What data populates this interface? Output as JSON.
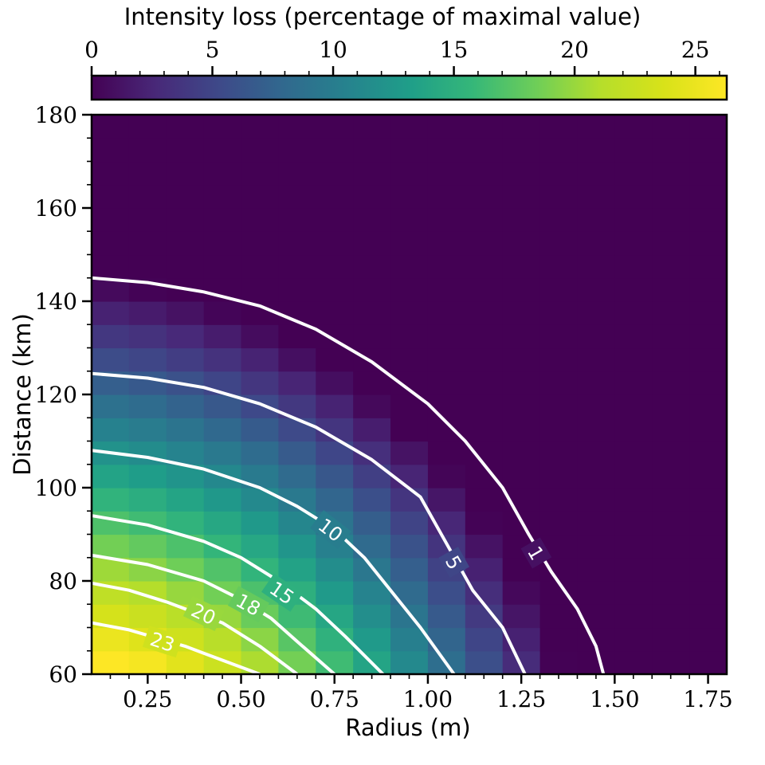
{
  "chart_data": {
    "type": "heatmap",
    "title": "",
    "xlabel": "Radius (m)",
    "ylabel": "Distance (km)",
    "colorbar_label": "Intensity loss (percentage of maximal value)",
    "xlim": [
      0.1,
      1.8
    ],
    "ylim": [
      60,
      180
    ],
    "colorbar_range": [
      0,
      26.3
    ],
    "x_ticks": [
      0.25,
      0.5,
      0.75,
      1.0,
      1.25,
      1.5,
      1.75
    ],
    "x_tick_labels": [
      "0.25",
      "0.50",
      "0.75",
      "1.00",
      "1.25",
      "1.50",
      "1.75"
    ],
    "y_ticks": [
      60,
      80,
      100,
      120,
      140,
      160,
      180
    ],
    "y_tick_labels": [
      "60",
      "80",
      "100",
      "120",
      "140",
      "160",
      "180"
    ],
    "colorbar_ticks": [
      0,
      5,
      10,
      15,
      20,
      25
    ],
    "colorbar_tick_labels": [
      "0",
      "5",
      "10",
      "15",
      "20",
      "25"
    ],
    "colormap": "viridis",
    "grid": false,
    "legend": "none",
    "model": {
      "description": "intensity loss grid sampled every 0.1 m radius and 5 km distance",
      "r_step": 0.1,
      "d_step": 5
    },
    "contours": [
      {
        "level": 1,
        "label": "1",
        "points": [
          [
            0.1,
            145
          ],
          [
            0.25,
            144
          ],
          [
            0.4,
            142
          ],
          [
            0.55,
            139
          ],
          [
            0.7,
            134
          ],
          [
            0.85,
            127
          ],
          [
            1.0,
            118
          ],
          [
            1.1,
            110
          ],
          [
            1.2,
            100
          ],
          [
            1.27,
            90
          ],
          [
            1.33,
            82
          ],
          [
            1.4,
            74
          ],
          [
            1.45,
            66
          ],
          [
            1.47,
            60
          ]
        ]
      },
      {
        "level": 5,
        "label": "5",
        "points": [
          [
            0.1,
            124.5
          ],
          [
            0.25,
            123.5
          ],
          [
            0.4,
            121.5
          ],
          [
            0.55,
            118
          ],
          [
            0.7,
            113
          ],
          [
            0.85,
            106
          ],
          [
            0.98,
            98
          ],
          [
            1.05,
            88
          ],
          [
            1.12,
            78
          ],
          [
            1.2,
            70
          ],
          [
            1.26,
            60
          ]
        ]
      },
      {
        "level": 10,
        "label": "10",
        "points": [
          [
            0.1,
            108
          ],
          [
            0.25,
            106.5
          ],
          [
            0.4,
            104
          ],
          [
            0.55,
            100
          ],
          [
            0.65,
            96
          ],
          [
            0.75,
            91
          ],
          [
            0.83,
            85
          ],
          [
            0.9,
            78
          ],
          [
            0.98,
            70
          ],
          [
            1.07,
            60
          ]
        ]
      },
      {
        "level": 15,
        "label": "15",
        "points": [
          [
            0.1,
            94
          ],
          [
            0.25,
            92
          ],
          [
            0.4,
            88.5
          ],
          [
            0.5,
            85
          ],
          [
            0.6,
            80
          ],
          [
            0.7,
            74
          ],
          [
            0.78,
            68
          ],
          [
            0.88,
            60
          ]
        ]
      },
      {
        "level": 18,
        "label": "18",
        "points": [
          [
            0.1,
            85.5
          ],
          [
            0.25,
            83.5
          ],
          [
            0.4,
            80
          ],
          [
            0.5,
            76
          ],
          [
            0.58,
            72
          ],
          [
            0.65,
            67
          ],
          [
            0.75,
            60
          ]
        ]
      },
      {
        "level": 20,
        "label": "20",
        "points": [
          [
            0.1,
            79.5
          ],
          [
            0.2,
            78
          ],
          [
            0.3,
            75.5
          ],
          [
            0.45,
            71
          ],
          [
            0.55,
            66
          ],
          [
            0.65,
            60
          ]
        ]
      },
      {
        "level": 23,
        "label": "23",
        "points": [
          [
            0.1,
            71
          ],
          [
            0.2,
            69.5
          ],
          [
            0.35,
            66
          ],
          [
            0.45,
            63
          ],
          [
            0.55,
            60
          ]
        ]
      }
    ]
  }
}
